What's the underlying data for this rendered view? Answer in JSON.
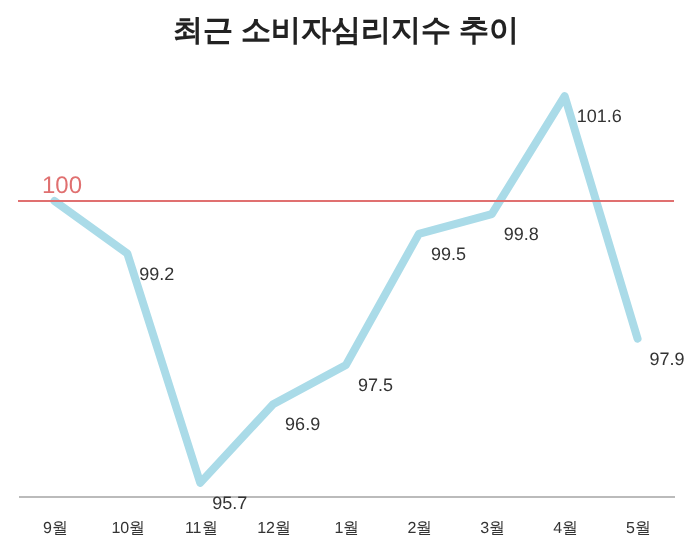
{
  "chart_data": {
    "type": "line",
    "title": "최근 소비자심리지수 추이",
    "categories": [
      "9월",
      "10월",
      "11월",
      "12월",
      "1월",
      "2월",
      "3월",
      "4월",
      "5월"
    ],
    "series": [
      {
        "color": "#aadbe8",
        "values": [
          100,
          99.2,
          95.7,
          96.9,
          97.5,
          99.5,
          99.8,
          101.6,
          97.9
        ],
        "value_labels": [
          null,
          "99.2",
          "95.7",
          "96.9",
          "97.5",
          "99.5",
          "99.8",
          "101.6",
          "97.9"
        ]
      }
    ],
    "marker": "none",
    "line_style": "solid",
    "ref_lines": [
      {
        "axis": "y",
        "value": 100,
        "label": "100",
        "color": "#e07070"
      }
    ]
  }
}
